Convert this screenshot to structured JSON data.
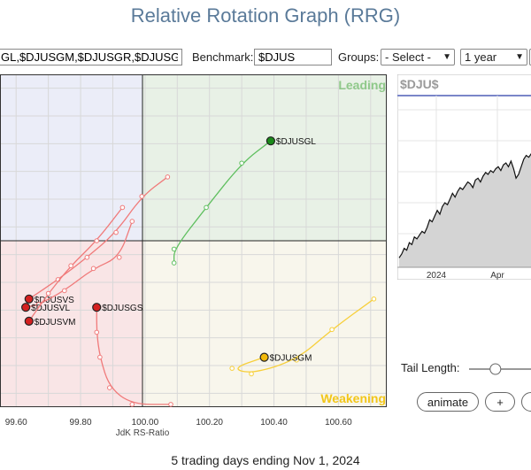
{
  "title": "Relative Rotation Graph (RRG)",
  "controls": {
    "symbols_value": "GL,$DJUSGM,$DJUSGR,$DJUSGS",
    "benchmark_label": "Benchmark:",
    "benchmark_value": "$DJUS",
    "groups_label": "Groups:",
    "groups_value": "- Select -",
    "period_value": "1 year"
  },
  "quadrants": {
    "leading": "Leading",
    "weakening": "Weakening"
  },
  "colors": {
    "leading": "#4caf50",
    "lagging": "#e53935",
    "weakening": "#f9c300",
    "improving": "#7b7bd6"
  },
  "chart_data": {
    "type": "scatter",
    "xlabel": "JdK RS-Ratio",
    "x_ticks": [
      "99.60",
      "99.80",
      "100.00",
      "100.20",
      "100.40",
      "100.60"
    ],
    "xlim": [
      99.55,
      100.75
    ],
    "ylim": [
      99.45,
      100.65
    ],
    "series": [
      {
        "name": "$DJUSGL",
        "color": "#1b8a1b",
        "points": [
          [
            100.09,
            99.97
          ],
          [
            100.09,
            100.02
          ],
          [
            100.19,
            100.17
          ],
          [
            100.3,
            100.33
          ],
          [
            100.39,
            100.41
          ]
        ]
      },
      {
        "name": "$DJUSGM",
        "color": "#f2b90a",
        "points": [
          [
            100.71,
            99.84
          ],
          [
            100.58,
            99.73
          ],
          [
            100.47,
            99.62
          ],
          [
            100.33,
            99.57
          ],
          [
            100.27,
            99.59
          ],
          [
            100.37,
            99.63
          ]
        ]
      },
      {
        "name": "$DJUSGS",
        "color": "#d42020",
        "points": [
          [
            100.08,
            99.46
          ],
          [
            99.96,
            99.46
          ],
          [
            99.89,
            99.52
          ],
          [
            99.86,
            99.63
          ],
          [
            99.85,
            99.72
          ],
          [
            99.85,
            99.81
          ]
        ]
      },
      {
        "name": "$DJUSVS",
        "color": "#d42020",
        "points": [
          [
            100.07,
            100.28
          ],
          [
            99.99,
            100.21
          ],
          [
            99.91,
            100.08
          ],
          [
            99.82,
            99.99
          ],
          [
            99.73,
            99.91
          ],
          [
            99.64,
            99.84
          ]
        ]
      },
      {
        "name": "$DJUSVL",
        "color": "#d42020",
        "points": [
          [
            99.96,
            100.12
          ],
          [
            99.92,
            99.99
          ],
          [
            99.84,
            99.95
          ],
          [
            99.75,
            99.87
          ],
          [
            99.67,
            99.82
          ],
          [
            99.63,
            99.81
          ]
        ]
      },
      {
        "name": "$DJUSVM",
        "color": "#d42020",
        "points": [
          [
            99.93,
            100.17
          ],
          [
            99.85,
            100.05
          ],
          [
            99.77,
            99.96
          ],
          [
            99.7,
            99.86
          ],
          [
            99.64,
            99.76
          ]
        ]
      }
    ]
  },
  "side_chart": {
    "title": "$DJU$",
    "x_ticks": [
      "2024",
      "Apr"
    ],
    "values": [
      50,
      52,
      55,
      54,
      58,
      57,
      61,
      60,
      62,
      64,
      63,
      66,
      70,
      69,
      72,
      75,
      73,
      77,
      79,
      78,
      81,
      84,
      82,
      85,
      87,
      86,
      88,
      90,
      89,
      87,
      91,
      92,
      90,
      93,
      95,
      94,
      96,
      95,
      97,
      98,
      96,
      99,
      100,
      98,
      101,
      97,
      92,
      94,
      98,
      102,
      104,
      103,
      105,
      108,
      106,
      110
    ]
  },
  "tail_length_label": "Tail Length:",
  "tail_length_value": 0.35,
  "animate_label": "animate",
  "plus_label": "+",
  "footer": "5 trading days ending Nov 1, 2024"
}
